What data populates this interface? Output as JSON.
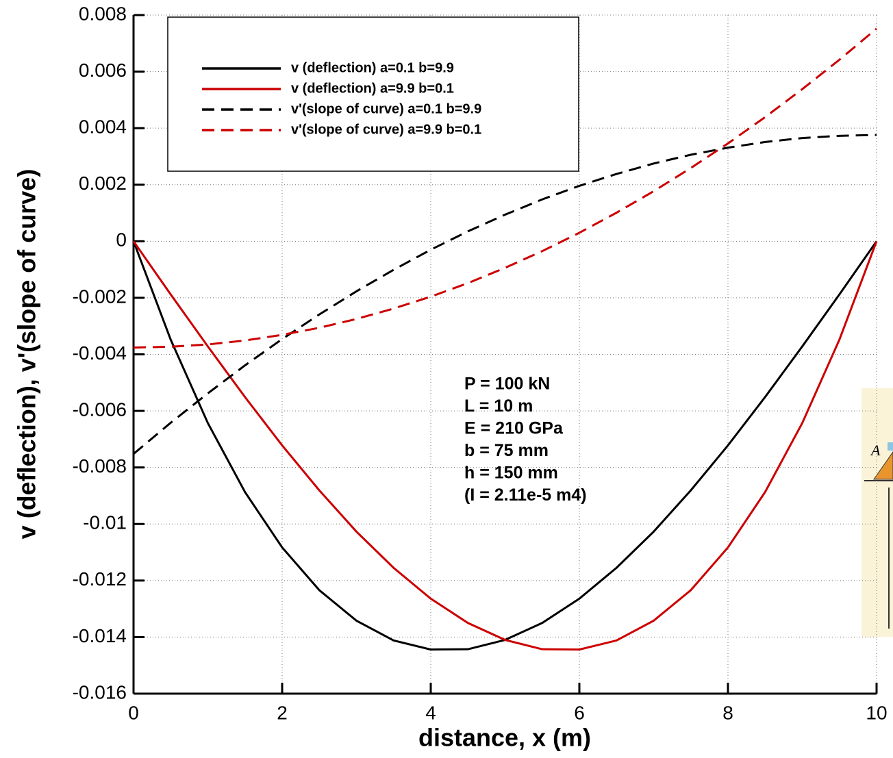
{
  "chart_data": {
    "type": "line",
    "x_label": "distance, x (m)",
    "y_label": "v (deflection), v'(slope of curve)",
    "x": [
      0,
      0.5,
      1,
      1.5,
      2,
      2.5,
      3,
      3.5,
      4,
      4.5,
      5,
      5.5,
      6,
      6.5,
      7,
      7.5,
      8,
      8.5,
      9,
      9.5,
      10
    ],
    "series": [
      {
        "name": "v (deflection) a=0.1 b=9.9",
        "color": "#000000",
        "dash": false,
        "values": [
          0,
          -0.00348,
          -0.00643,
          -0.00887,
          -0.01083,
          -0.01234,
          -0.01342,
          -0.01412,
          -0.01444,
          -0.01443,
          -0.0141,
          -0.0135,
          -0.01264,
          -0.01155,
          -0.01027,
          -0.00881,
          -0.00722,
          -0.00551,
          -0.00372,
          -0.00188,
          0
        ]
      },
      {
        "name": "v (deflection)  a=9.9 b=0.1",
        "color": "#cc0000",
        "dash": false,
        "values": [
          0,
          -0.00188,
          -0.00372,
          -0.00551,
          -0.00722,
          -0.00881,
          -0.01027,
          -0.01155,
          -0.01264,
          -0.0135,
          -0.0141,
          -0.01443,
          -0.01444,
          -0.01412,
          -0.01342,
          -0.01234,
          -0.01083,
          -0.00887,
          -0.00643,
          -0.00348,
          0
        ]
      },
      {
        "name": "v'(slope of curve) a=0.1 b=9.9",
        "color": "#000000",
        "dash": true,
        "values": [
          -0.00752,
          -0.00642,
          -0.00538,
          -0.00439,
          -0.00346,
          -0.00259,
          -0.00177,
          -0.00101,
          -0.0003,
          0.00035,
          0.00094,
          0.00148,
          0.00196,
          0.00238,
          0.00275,
          0.00306,
          0.00331,
          0.00351,
          0.00365,
          0.00373,
          0.00376
        ]
      },
      {
        "name": "v'(slope of curve)  a=9.9 b=0.1",
        "color": "#cc0000",
        "dash": true,
        "values": [
          -0.00376,
          -0.00373,
          -0.00365,
          -0.00351,
          -0.00331,
          -0.00306,
          -0.00275,
          -0.00238,
          -0.00196,
          -0.00148,
          -0.00094,
          -0.00035,
          0.0003,
          0.00101,
          0.00177,
          0.00259,
          0.00346,
          0.00439,
          0.00538,
          0.00642,
          0.00752
        ]
      }
    ],
    "xlim": [
      0,
      10
    ],
    "xticks": [
      0,
      2,
      4,
      6,
      8,
      10
    ],
    "ylim": [
      -0.016,
      0.008
    ],
    "yticks": [
      -0.016,
      -0.014,
      -0.012,
      -0.01,
      -0.008,
      -0.006,
      -0.004,
      -0.002,
      0,
      0.002,
      0.004,
      0.006,
      0.008
    ],
    "grid": true,
    "legend": "upper left",
    "annotations": [
      "P = 100 kN",
      "L = 10 m",
      "E = 210 GPa",
      "b = 75 mm",
      "h = 150 mm",
      "(I = 2.11e-5 m4)"
    ],
    "figure_label": "A"
  }
}
